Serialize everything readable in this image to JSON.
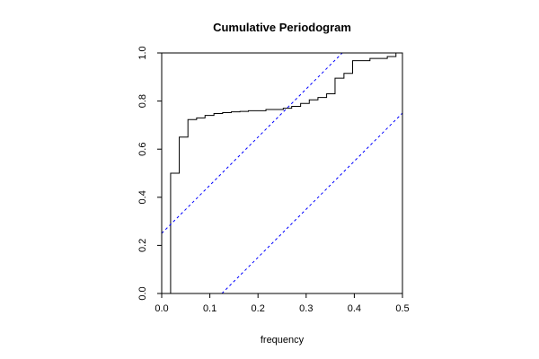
{
  "chart_data": {
    "type": "line",
    "title": "Cumulative Periodogram",
    "xlabel": "frequency",
    "ylabel": "",
    "xlim": [
      0,
      0.5
    ],
    "ylim": [
      0,
      1
    ],
    "x_ticks": [
      0.0,
      0.1,
      0.2,
      0.3,
      0.4,
      0.5
    ],
    "x_tick_labels": [
      "0.0",
      "0.1",
      "0.2",
      "0.3",
      "0.4",
      "0.5"
    ],
    "y_ticks": [
      0.0,
      0.2,
      0.4,
      0.6,
      0.8,
      1.0
    ],
    "y_tick_labels": [
      "0.0",
      "0.2",
      "0.4",
      "0.6",
      "0.8",
      "1.0"
    ],
    "grid": false,
    "colors": {
      "series": "#000000",
      "bands": "#0000ff",
      "axes": "#000000"
    },
    "series": [
      {
        "style": "step",
        "x": [
          0.0,
          0.0185,
          0.0185,
          0.0365,
          0.0365,
          0.0545,
          0.0545,
          0.0725,
          0.0725,
          0.09,
          0.09,
          0.1085,
          0.1085,
          0.1265,
          0.1265,
          0.1445,
          0.1445,
          0.1625,
          0.1625,
          0.18,
          0.18,
          0.2165,
          0.2165,
          0.2525,
          0.2525,
          0.27,
          0.27,
          0.2885,
          0.2885,
          0.3065,
          0.3065,
          0.3245,
          0.3245,
          0.3425,
          0.3425,
          0.36,
          0.36,
          0.3785,
          0.3785,
          0.3965,
          0.3965,
          0.4325,
          0.4325,
          0.4685,
          0.4685,
          0.4865,
          0.4865,
          0.5
        ],
        "y": [
          0.0,
          0.0,
          0.5,
          0.5,
          0.65,
          0.65,
          0.723,
          0.723,
          0.73,
          0.73,
          0.74,
          0.74,
          0.748,
          0.748,
          0.752,
          0.752,
          0.755,
          0.755,
          0.757,
          0.757,
          0.76,
          0.76,
          0.765,
          0.765,
          0.77,
          0.77,
          0.778,
          0.778,
          0.79,
          0.79,
          0.805,
          0.805,
          0.815,
          0.815,
          0.83,
          0.83,
          0.895,
          0.895,
          0.915,
          0.915,
          0.968,
          0.968,
          0.977,
          0.977,
          0.985,
          0.985,
          1.0,
          1.0
        ]
      },
      {
        "style": "dashed",
        "x": [
          0.0,
          0.375
        ],
        "y": [
          0.25,
          1.0
        ]
      },
      {
        "style": "dashed",
        "x": [
          0.125,
          0.5
        ],
        "y": [
          0.0,
          0.75
        ]
      }
    ]
  }
}
